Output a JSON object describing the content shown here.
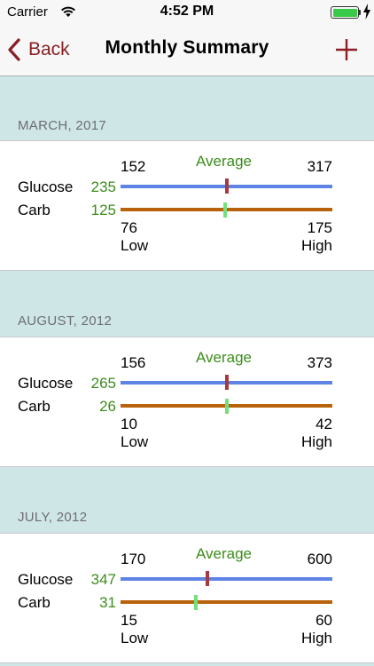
{
  "status_bar": {
    "carrier": "Carrier",
    "time": "4:52 PM",
    "battery_color": "#39c94b"
  },
  "nav": {
    "back_label": "Back",
    "title": "Monthly Summary",
    "add_icon": "plus-icon",
    "accent_color": "#8a1f25"
  },
  "labels": {
    "average": "Average",
    "glucose": "Glucose",
    "carb": "Carb",
    "low": "Low",
    "high": "High"
  },
  "months": [
    {
      "header": "MARCH, 2017",
      "glucose": {
        "min": "152",
        "max": "317",
        "avg": "235",
        "avg_num": 235,
        "min_num": 152,
        "max_num": 317
      },
      "carb": {
        "min": "76",
        "max": "175",
        "avg": "125",
        "avg_num": 125,
        "min_num": 76,
        "max_num": 175
      }
    },
    {
      "header": "AUGUST, 2012",
      "glucose": {
        "min": "156",
        "max": "373",
        "avg": "265",
        "avg_num": 265,
        "min_num": 156,
        "max_num": 373
      },
      "carb": {
        "min": "10",
        "max": "42",
        "avg": "26",
        "avg_num": 26,
        "min_num": 10,
        "max_num": 42
      }
    },
    {
      "header": "JULY, 2012",
      "glucose": {
        "min": "170",
        "max": "600",
        "avg": "347",
        "avg_num": 347,
        "min_num": 170,
        "max_num": 600
      },
      "carb": {
        "min": "15",
        "max": "60",
        "avg": "31",
        "avg_num": 31,
        "min_num": 15,
        "max_num": 60
      }
    }
  ]
}
